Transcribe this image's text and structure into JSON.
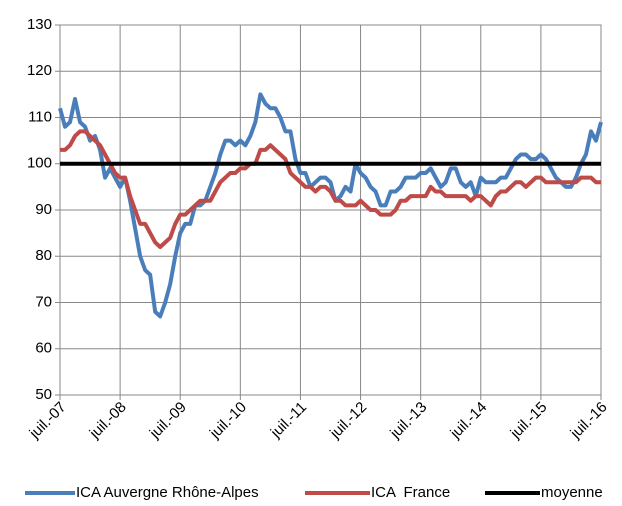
{
  "chart_data": {
    "type": "line",
    "categories": [
      "juil.-07",
      null,
      null,
      null,
      null,
      null,
      null,
      null,
      null,
      null,
      null,
      null,
      "juil.-08",
      null,
      null,
      null,
      null,
      null,
      null,
      null,
      null,
      null,
      null,
      null,
      "juil.-09",
      null,
      null,
      null,
      null,
      null,
      null,
      null,
      null,
      null,
      null,
      null,
      "juil.-10",
      null,
      null,
      null,
      null,
      null,
      null,
      null,
      null,
      null,
      null,
      null,
      "juil.-11",
      null,
      null,
      null,
      null,
      null,
      null,
      null,
      null,
      null,
      null,
      null,
      "juil.-12",
      null,
      null,
      null,
      null,
      null,
      null,
      null,
      null,
      null,
      null,
      null,
      "juil.-13",
      null,
      null,
      null,
      null,
      null,
      null,
      null,
      null,
      null,
      null,
      null,
      "juil.-14",
      null,
      null,
      null,
      null,
      null,
      null,
      null,
      null,
      null,
      null,
      null,
      "juil.-15",
      null,
      null,
      null,
      null,
      null,
      null,
      null,
      null,
      null,
      null,
      null,
      "juil.-16"
    ],
    "series": [
      {
        "name": "ICA Auvergne Rhône-Alpes",
        "color": "#4a7ebb",
        "values": [
          112,
          108,
          109,
          114,
          109,
          108,
          105,
          106,
          103,
          97,
          99,
          97,
          95,
          97,
          92,
          86,
          80,
          77,
          76,
          68,
          67,
          70,
          74,
          80,
          85,
          87,
          87,
          91,
          91,
          92,
          95,
          98,
          102,
          105,
          105,
          104,
          105,
          104,
          106,
          109,
          115,
          113,
          112,
          112,
          110,
          107,
          107,
          101,
          98,
          98,
          95,
          96,
          97,
          97,
          96,
          92,
          93,
          95,
          94,
          100,
          98,
          97,
          95,
          94,
          91,
          91,
          94,
          94,
          95,
          97,
          97,
          97,
          98,
          98,
          99,
          97,
          95,
          96,
          99,
          99,
          96,
          95,
          96,
          93,
          97,
          96,
          96,
          96,
          97,
          97,
          99,
          101,
          102,
          102,
          101,
          101,
          102,
          101,
          99,
          97,
          96,
          95,
          95,
          97,
          100,
          102,
          107,
          105,
          109
        ]
      },
      {
        "name": "ICA  France",
        "color": "#be4b48",
        "values": [
          103,
          103,
          104,
          106,
          107,
          107,
          106,
          105,
          104,
          102,
          100,
          98,
          97,
          97,
          93,
          90,
          87,
          87,
          85,
          83,
          82,
          83,
          84,
          87,
          89,
          89,
          90,
          91,
          92,
          92,
          92,
          94,
          96,
          97,
          98,
          98,
          99,
          99,
          100,
          100,
          103,
          103,
          104,
          103,
          102,
          101,
          98,
          97,
          96,
          95,
          95,
          94,
          95,
          95,
          94,
          92,
          92,
          91,
          91,
          91,
          92,
          91,
          90,
          90,
          89,
          89,
          89,
          90,
          92,
          92,
          93,
          93,
          93,
          93,
          95,
          94,
          94,
          93,
          93,
          93,
          93,
          93,
          92,
          93,
          93,
          92,
          91,
          93,
          94,
          94,
          95,
          96,
          96,
          95,
          96,
          97,
          97,
          96,
          96,
          96,
          96,
          96,
          96,
          96,
          97,
          97,
          97,
          96,
          96
        ]
      },
      {
        "name": "moyenne",
        "color": "#000000",
        "values": [
          100,
          100,
          100,
          100,
          100,
          100,
          100,
          100,
          100,
          100,
          100,
          100,
          100,
          100,
          100,
          100,
          100,
          100,
          100,
          100,
          100,
          100,
          100,
          100,
          100,
          100,
          100,
          100,
          100,
          100,
          100,
          100,
          100,
          100,
          100,
          100,
          100,
          100,
          100,
          100,
          100,
          100,
          100,
          100,
          100,
          100,
          100,
          100,
          100,
          100,
          100,
          100,
          100,
          100,
          100,
          100,
          100,
          100,
          100,
          100,
          100,
          100,
          100,
          100,
          100,
          100,
          100,
          100,
          100,
          100,
          100,
          100,
          100,
          100,
          100,
          100,
          100,
          100,
          100,
          100,
          100,
          100,
          100,
          100,
          100,
          100,
          100,
          100,
          100,
          100,
          100,
          100,
          100,
          100,
          100,
          100,
          100,
          100,
          100,
          100,
          100,
          100,
          100,
          100,
          100,
          100,
          100,
          100,
          100
        ]
      }
    ],
    "ylim": [
      50,
      130
    ],
    "yticks": [
      50,
      60,
      70,
      80,
      90,
      100,
      110,
      120,
      130
    ],
    "grid": true,
    "legend": "bottom"
  }
}
